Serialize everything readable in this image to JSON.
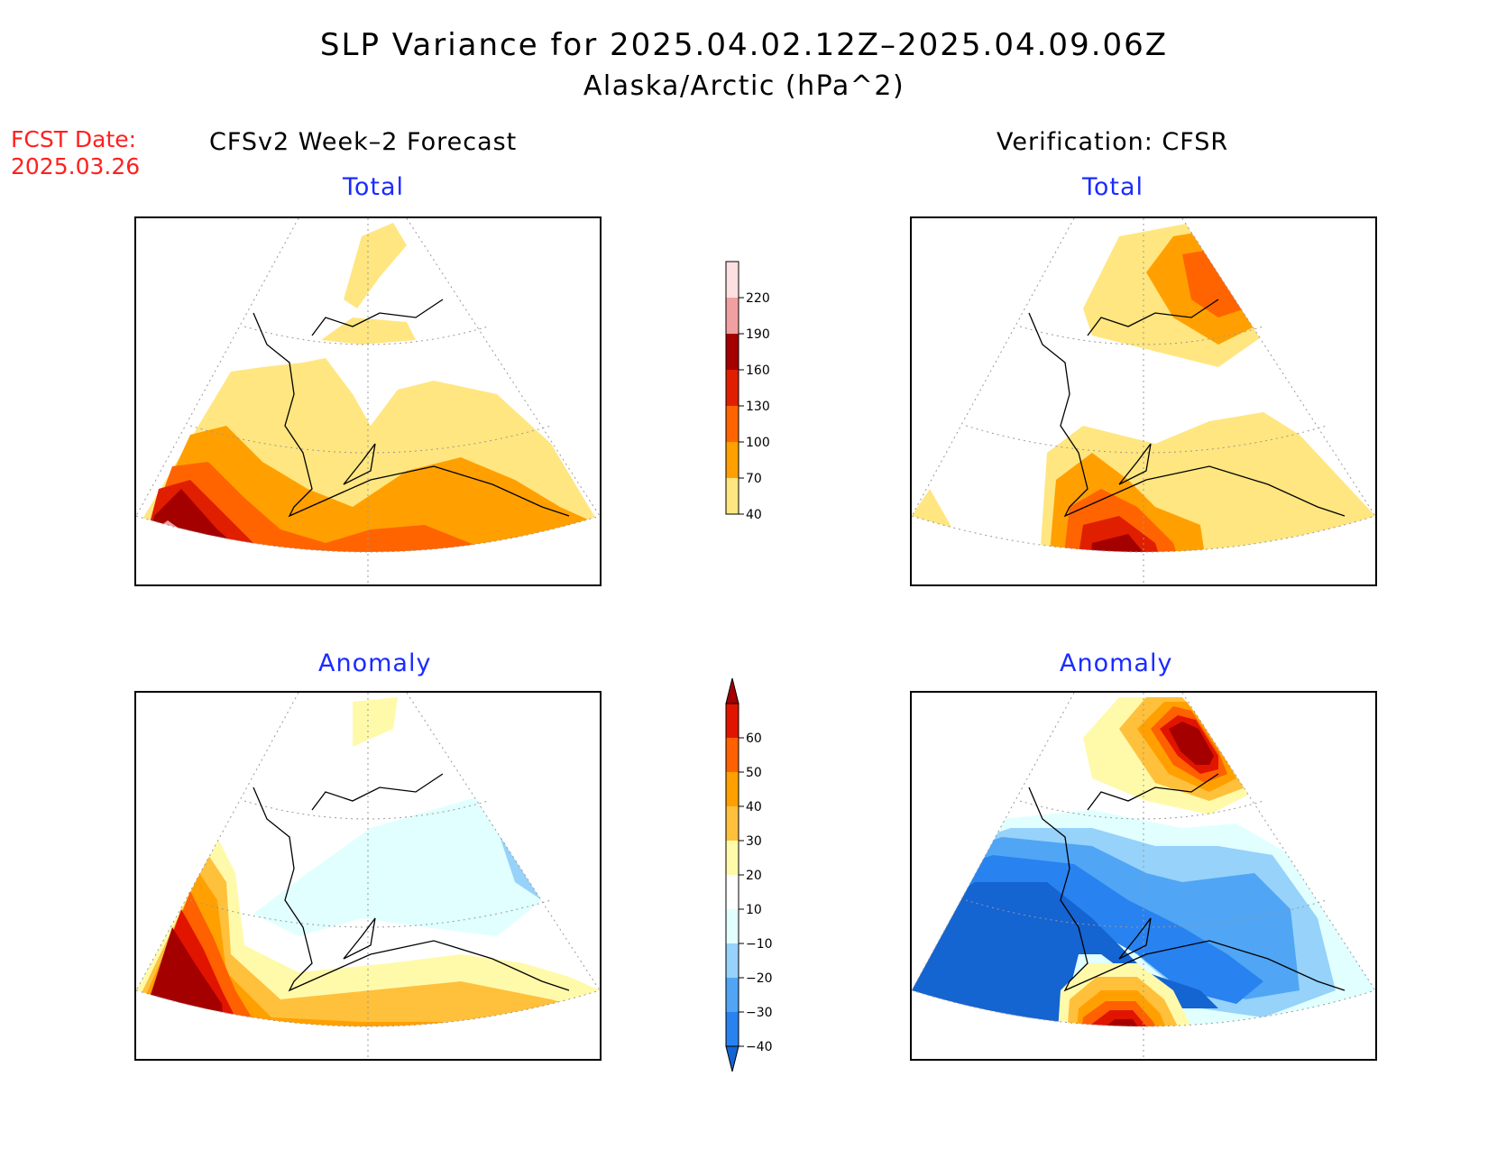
{
  "header": {
    "title": "SLP Variance for 2025.04.02.12Z–2025.04.09.06Z",
    "subtitle": "Alaska/Arctic (hPa^2)",
    "fcst_line1": "FCST Date:",
    "fcst_line2": "2025.03.26",
    "left_column_title": "CFSv2 Week–2 Forecast",
    "right_column_title": "Verification: CFSR"
  },
  "panels": {
    "forecast_total": {
      "label": "Total"
    },
    "verification_total": {
      "label": "Total"
    },
    "forecast_anomaly": {
      "label": "Anomaly"
    },
    "verification_anomaly": {
      "label": "Anomaly"
    }
  },
  "colorbars": {
    "total": {
      "ticks": [
        "40",
        "70",
        "100",
        "130",
        "160",
        "190",
        "220"
      ],
      "colors": [
        "#ffe680",
        "#ffa000",
        "#ff6400",
        "#e01e00",
        "#a50000",
        "#f0a0a0",
        "#ffe0e0"
      ]
    },
    "anomaly": {
      "ticks": [
        "−40",
        "−30",
        "−20",
        "−10",
        "10",
        "20",
        "30",
        "40",
        "50",
        "60"
      ],
      "colors": [
        "#1464d2",
        "#2882f0",
        "#50a5f5",
        "#96d2fa",
        "#e1ffff",
        "#ffffff",
        "#fffaaa",
        "#ffc03c",
        "#ffa000",
        "#ff6000",
        "#e11400",
        "#a50000"
      ]
    }
  },
  "colors": {
    "fcst_date": "#ff2020",
    "panel_label": "#1a2cff"
  }
}
